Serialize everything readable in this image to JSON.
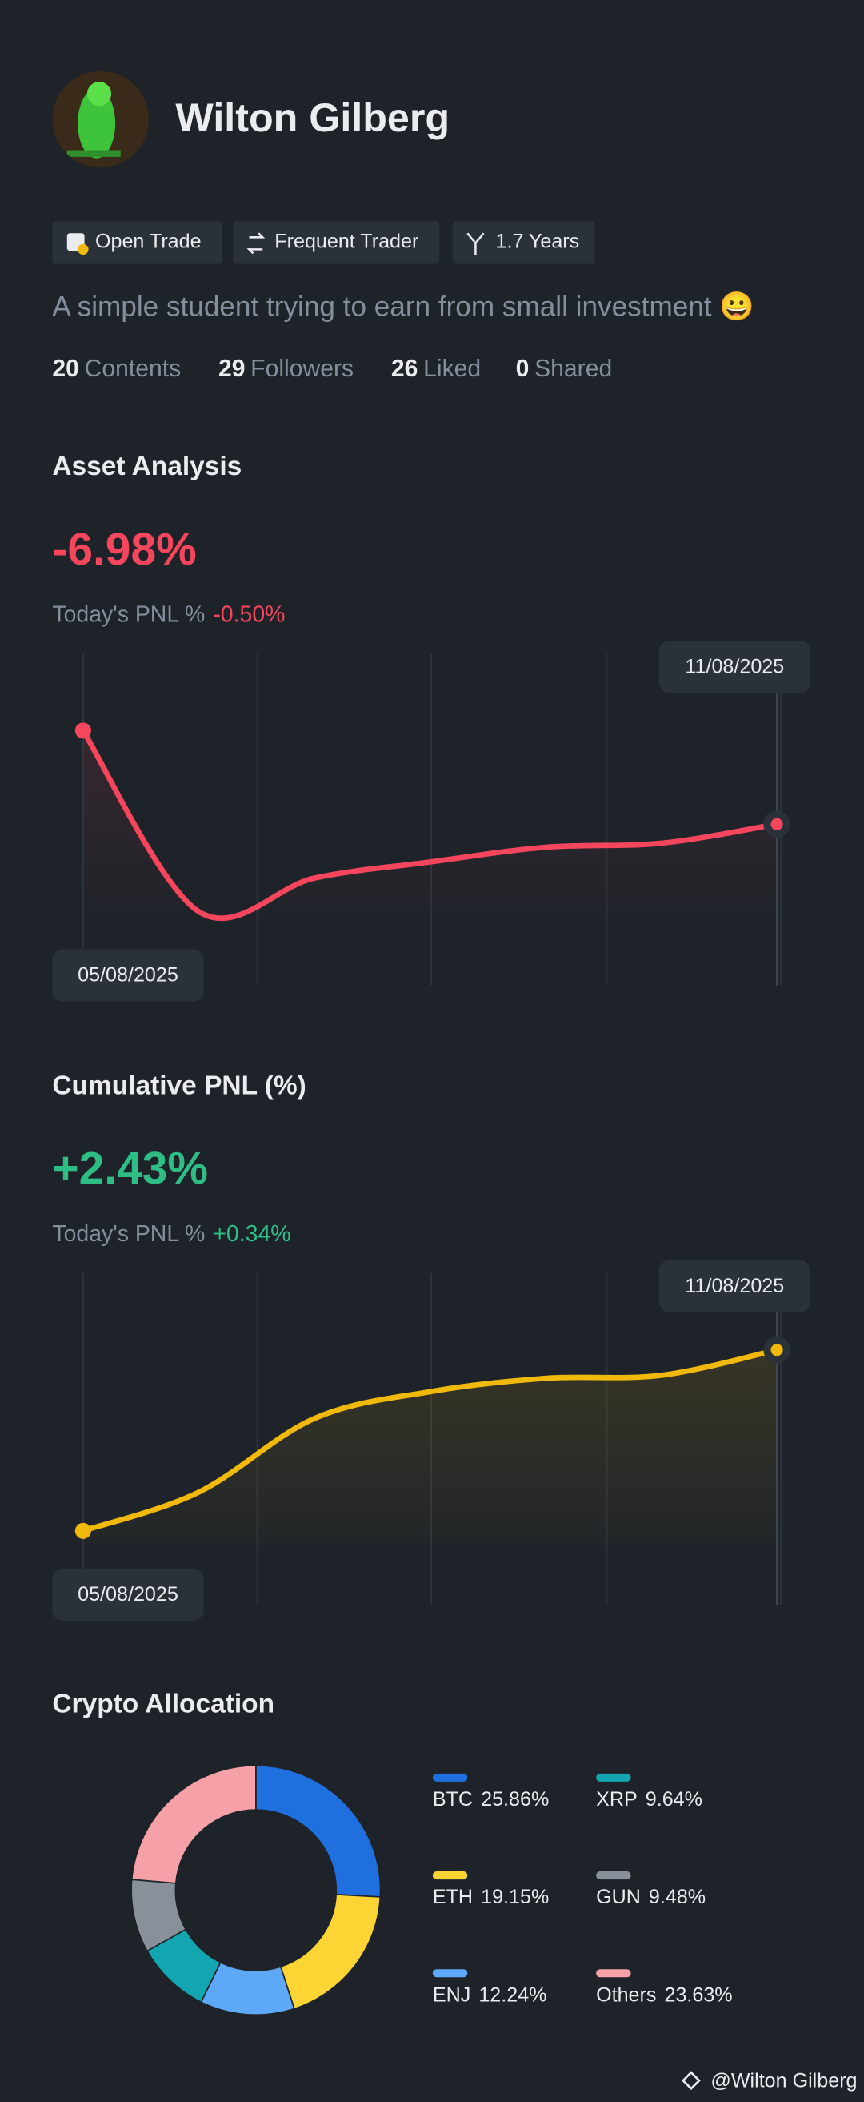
{
  "profile": {
    "name": "Wilton Gilberg",
    "badges": [
      "Open Trade",
      "Frequent Trader",
      "1.7 Years"
    ],
    "bio": "A simple student trying to earn from small investment 😀",
    "stats": [
      {
        "count": 20,
        "label": "Contents"
      },
      {
        "count": 29,
        "label": "Followers"
      },
      {
        "count": 26,
        "label": "Liked"
      },
      {
        "count": 0,
        "label": "Shared"
      }
    ]
  },
  "chart_data": [
    {
      "type": "line",
      "title": "Asset Analysis",
      "headline": "-6.98%",
      "subtitle": "Today's PNL %",
      "change": "-0.50%",
      "accent": "#f6465d",
      "color": "#f6465d",
      "categories": [
        "05/08/2025",
        null,
        null,
        null,
        null,
        null,
        "11/08/2025"
      ],
      "values": [
        0,
        -13.5,
        -11.0,
        -9.8,
        -8.7,
        -8.4,
        -6.98
      ]
    },
    {
      "type": "line",
      "title": "Cumulative PNL (%)",
      "headline": "+2.43%",
      "subtitle": "Today's PNL %",
      "change": "+0.34%",
      "accent": "#2ebd85",
      "color": "#f0b90b",
      "categories": [
        "05/08/2025",
        null,
        null,
        null,
        null,
        null,
        "11/08/2025"
      ],
      "values": [
        0,
        0.52,
        1.51,
        1.87,
        2.05,
        2.09,
        2.43
      ]
    },
    {
      "type": "pie",
      "title": "Crypto Allocation",
      "categories": [
        "BTC",
        "ETH",
        "ENJ",
        "XRP",
        "GUN",
        "Others"
      ],
      "values": [
        25.86,
        19.15,
        12.24,
        9.64,
        9.48,
        23.63
      ],
      "value_labels": [
        "25.86%",
        "19.15%",
        "12.24%",
        "9.64%",
        "9.48%",
        "23.63%"
      ],
      "colors": [
        "#1f6fde",
        "#fcd535",
        "#5ea8f8",
        "#14a6b0",
        "#8a9099",
        "#f6a0a7"
      ]
    }
  ],
  "footer": "@Wilton Gilberg"
}
